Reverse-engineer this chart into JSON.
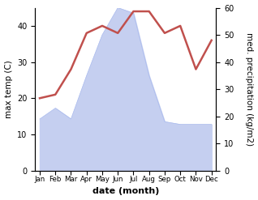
{
  "months": [
    "Jan",
    "Feb",
    "Mar",
    "Apr",
    "May",
    "Jun",
    "Jul",
    "Aug",
    "Sep",
    "Oct",
    "Nov",
    "Dec"
  ],
  "temperature": [
    20,
    21,
    28,
    38,
    40,
    38,
    44,
    44,
    38,
    40,
    28,
    36
  ],
  "precipitation": [
    19,
    23,
    19,
    35,
    50,
    60,
    58,
    35,
    18,
    17,
    17,
    17
  ],
  "temp_color": "#c0504d",
  "precip_fill_color": "#c5cff0",
  "precip_edge_color": "#aabbee",
  "temp_ylim": [
    0,
    45
  ],
  "precip_ylim": [
    0,
    60
  ],
  "temp_yticks": [
    0,
    10,
    20,
    30,
    40
  ],
  "precip_yticks": [
    0,
    10,
    20,
    30,
    40,
    50,
    60
  ],
  "ylabel_left": "max temp (C)",
  "ylabel_right": "med. precipitation (kg/m2)",
  "xlabel": "date (month)",
  "background_color": "#ffffff"
}
